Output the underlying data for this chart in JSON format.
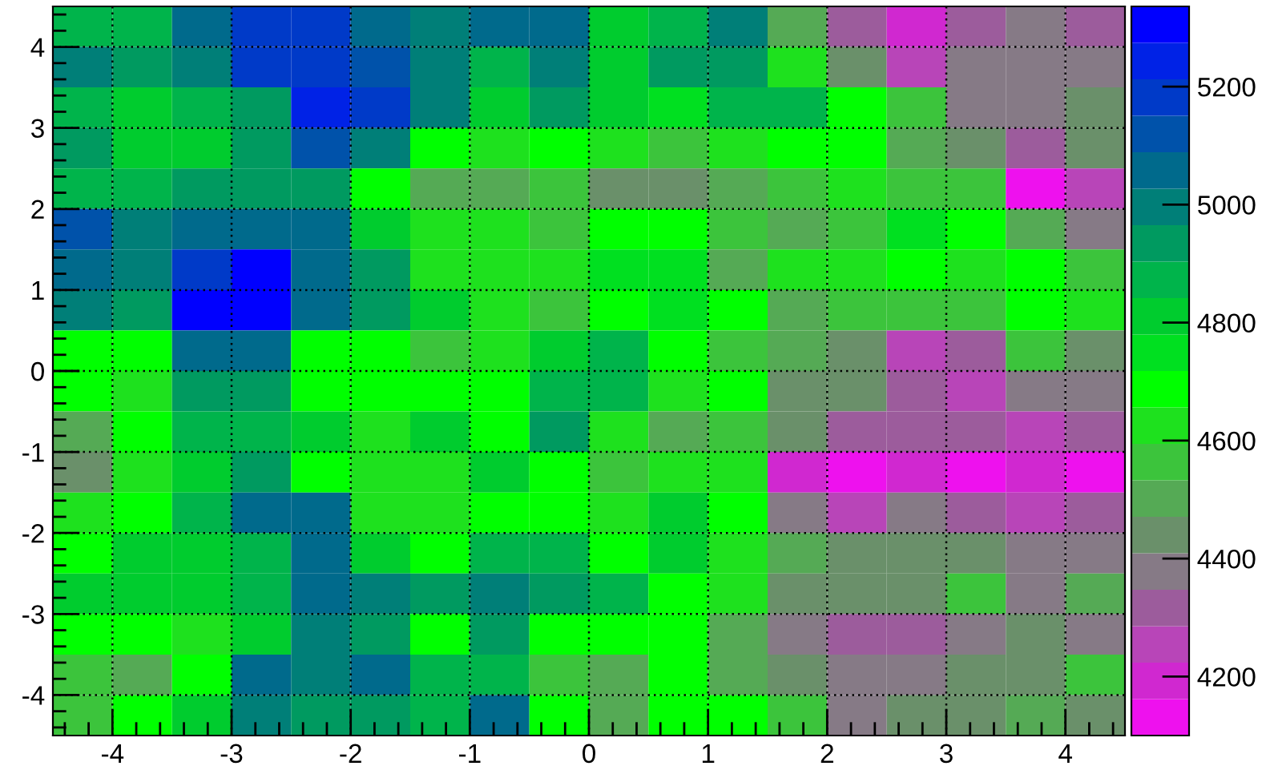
{
  "chart_data": {
    "type": "heatmap",
    "x": [
      -4.25,
      -3.75,
      -3.25,
      -2.75,
      -2.25,
      -1.75,
      -1.25,
      -0.75,
      -0.25,
      0.25,
      0.75,
      1.25,
      1.75,
      2.25,
      2.75,
      3.25,
      3.75,
      4.25
    ],
    "y": [
      4.25,
      3.75,
      3.25,
      2.75,
      2.25,
      1.75,
      1.25,
      0.75,
      0.25,
      -0.25,
      -0.75,
      -1.25,
      -1.75,
      -2.25,
      -2.75,
      -3.25,
      -3.75,
      -4.25
    ],
    "cells": [
      [
        4870,
        4870,
        5060,
        5180,
        5180,
        5060,
        4990,
        5060,
        5060,
        4810,
        4870,
        4990,
        4500,
        4320,
        4190,
        4320,
        4380,
        4320
      ],
      [
        4990,
        4930,
        4990,
        5180,
        5180,
        5120,
        4990,
        4870,
        4990,
        4810,
        4930,
        4930,
        4630,
        4440,
        4250,
        4380,
        4380,
        4380
      ],
      [
        4870,
        4810,
        4870,
        4930,
        5240,
        5180,
        4990,
        4810,
        4930,
        4810,
        4750,
        4870,
        4870,
        4690,
        4560,
        4380,
        4380,
        4440
      ],
      [
        4930,
        4810,
        4810,
        4930,
        5120,
        4990,
        4690,
        4630,
        4690,
        4630,
        4560,
        4630,
        4690,
        4690,
        4500,
        4440,
        4320,
        4440
      ],
      [
        4870,
        4870,
        4930,
        4930,
        4930,
        4690,
        4500,
        4500,
        4560,
        4440,
        4440,
        4500,
        4560,
        4630,
        4560,
        4560,
        4130,
        4250
      ],
      [
        5120,
        4990,
        5060,
        5060,
        5060,
        4810,
        4630,
        4630,
        4560,
        4690,
        4690,
        4560,
        4500,
        4560,
        4750,
        4690,
        4500,
        4380
      ],
      [
        5060,
        4990,
        5180,
        5300,
        5060,
        4930,
        4630,
        4630,
        4630,
        4750,
        4750,
        4500,
        4630,
        4630,
        4690,
        4630,
        4690,
        4560
      ],
      [
        4990,
        4930,
        5300,
        5300,
        5060,
        4930,
        4810,
        4630,
        4560,
        4690,
        4750,
        4690,
        4500,
        4560,
        4560,
        4560,
        4690,
        4630
      ],
      [
        4690,
        4690,
        5060,
        5060,
        4690,
        4690,
        4560,
        4630,
        4810,
        4870,
        4690,
        4560,
        4500,
        4440,
        4250,
        4320,
        4560,
        4440
      ],
      [
        4690,
        4630,
        4930,
        4930,
        4690,
        4690,
        4690,
        4690,
        4870,
        4870,
        4630,
        4690,
        4440,
        4440,
        4320,
        4250,
        4380,
        4380
      ],
      [
        4500,
        4690,
        4870,
        4870,
        4810,
        4630,
        4810,
        4690,
        4930,
        4630,
        4500,
        4560,
        4440,
        4320,
        4320,
        4320,
        4250,
        4320
      ],
      [
        4440,
        4630,
        4810,
        4930,
        4690,
        4630,
        4630,
        4810,
        4690,
        4560,
        4630,
        4630,
        4190,
        4130,
        4190,
        4130,
        4190,
        4130
      ],
      [
        4630,
        4690,
        4870,
        5060,
        5060,
        4630,
        4630,
        4690,
        4690,
        4630,
        4810,
        4690,
        4380,
        4250,
        4380,
        4320,
        4250,
        4320
      ],
      [
        4690,
        4810,
        4810,
        4870,
        5060,
        4810,
        4690,
        4870,
        4870,
        4690,
        4810,
        4630,
        4500,
        4440,
        4440,
        4440,
        4380,
        4380
      ],
      [
        4810,
        4810,
        4810,
        4870,
        5060,
        4990,
        4930,
        4990,
        4930,
        4870,
        4690,
        4630,
        4440,
        4440,
        4440,
        4560,
        4380,
        4500
      ],
      [
        4690,
        4690,
        4630,
        4810,
        4990,
        4930,
        4690,
        4930,
        4690,
        4690,
        4690,
        4500,
        4380,
        4320,
        4320,
        4380,
        4440,
        4380
      ],
      [
        4560,
        4500,
        4690,
        5060,
        4990,
        5060,
        4870,
        4870,
        4560,
        4500,
        4690,
        4500,
        4440,
        4380,
        4380,
        4440,
        4440,
        4560
      ],
      [
        4560,
        4690,
        4810,
        4990,
        4930,
        4930,
        4870,
        5060,
        4690,
        4500,
        4690,
        4690,
        4560,
        4380,
        4440,
        4440,
        4500,
        4440
      ]
    ],
    "xlim": [
      -4.5,
      4.5
    ],
    "ylim": [
      -4.5,
      4.5
    ],
    "xticks": [
      -4,
      -3,
      -2,
      -1,
      0,
      1,
      2,
      3,
      4
    ],
    "yticks": [
      -4,
      -3,
      -2,
      -1,
      0,
      1,
      2,
      3,
      4
    ],
    "clim": [
      4100,
      5336
    ],
    "cticks": [
      4200,
      4400,
      4600,
      4800,
      5000,
      5200
    ],
    "grid": true
  }
}
